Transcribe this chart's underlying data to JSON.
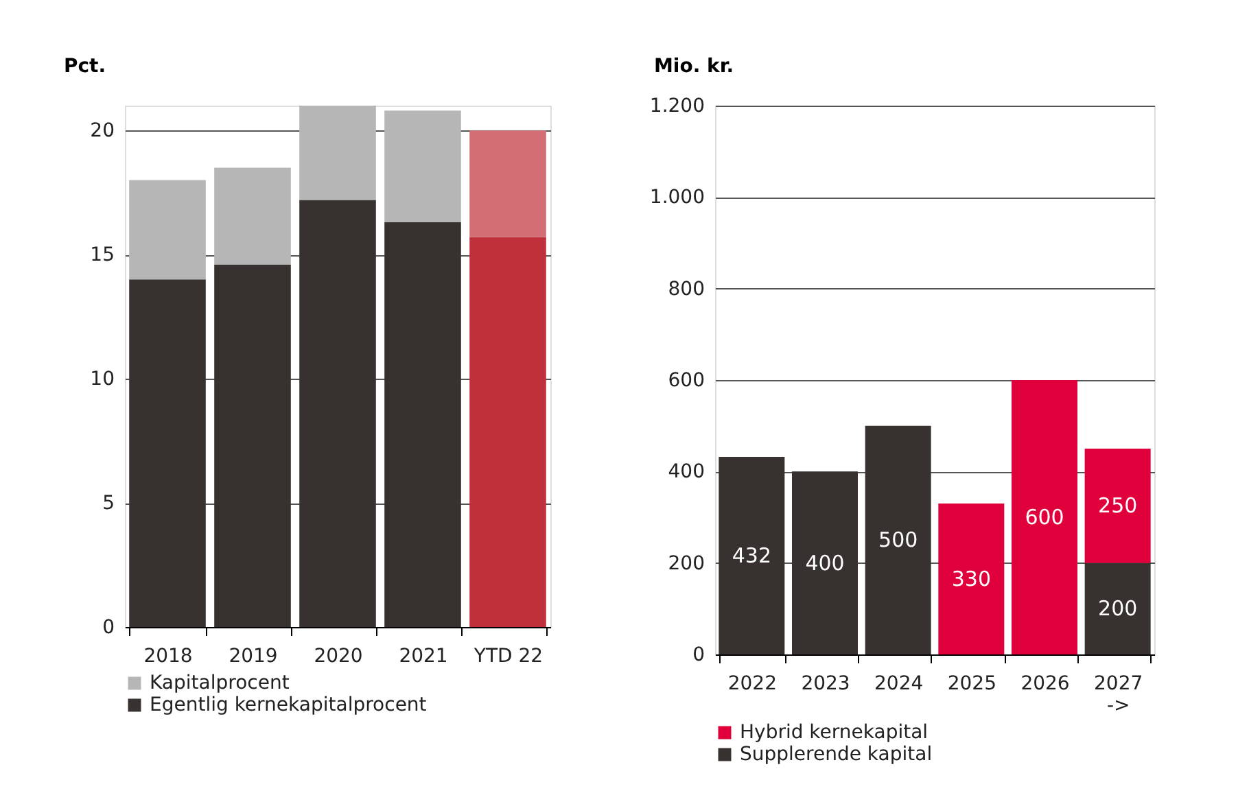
{
  "chart_data": [
    {
      "type": "bar",
      "stacked": true,
      "ylabel": "Pct.",
      "categories": [
        "2018",
        "2019",
        "2020",
        "2021",
        "YTD 22"
      ],
      "ylim": [
        0,
        21
      ],
      "yticks": [
        0,
        5,
        10,
        15,
        20
      ],
      "grid": "y",
      "legend": "bottom",
      "series": [
        {
          "name": "Egentlig kernekapitalprocent",
          "color": "#373230",
          "colors": [
            "#373230",
            "#373230",
            "#373230",
            "#373230",
            "#c0303a"
          ],
          "values": [
            14.0,
            14.6,
            17.2,
            16.3,
            15.7
          ]
        },
        {
          "name": "Kapitalprocent",
          "color": "#b5b6b5",
          "colors": [
            "#b5b6b5",
            "#b5b6b5",
            "#b5b6b5",
            "#b5b6b5",
            "#d46e75"
          ],
          "values": [
            4.0,
            3.9,
            3.8,
            4.5,
            4.3
          ]
        }
      ]
    },
    {
      "type": "bar",
      "stacked": true,
      "ylabel": "Mio. kr.",
      "categories": [
        "2022",
        "2023",
        "2024",
        "2025",
        "2026",
        "2027\n->"
      ],
      "ylim": [
        0,
        1200
      ],
      "yticks": [
        0,
        200,
        400,
        600,
        800,
        {
          "value": 1000,
          "label": "1.000"
        },
        {
          "value": 1200,
          "label": "1.200"
        }
      ],
      "grid": "y",
      "legend": "bottom",
      "data_labels": true,
      "series": [
        {
          "name": "Supplerende kapital",
          "color": "#373230",
          "values": [
            432,
            400,
            500,
            null,
            null,
            200
          ]
        },
        {
          "name": "Hybrid kernekapital",
          "color": "#e0003c",
          "values": [
            null,
            null,
            null,
            330,
            600,
            250
          ]
        }
      ]
    }
  ]
}
